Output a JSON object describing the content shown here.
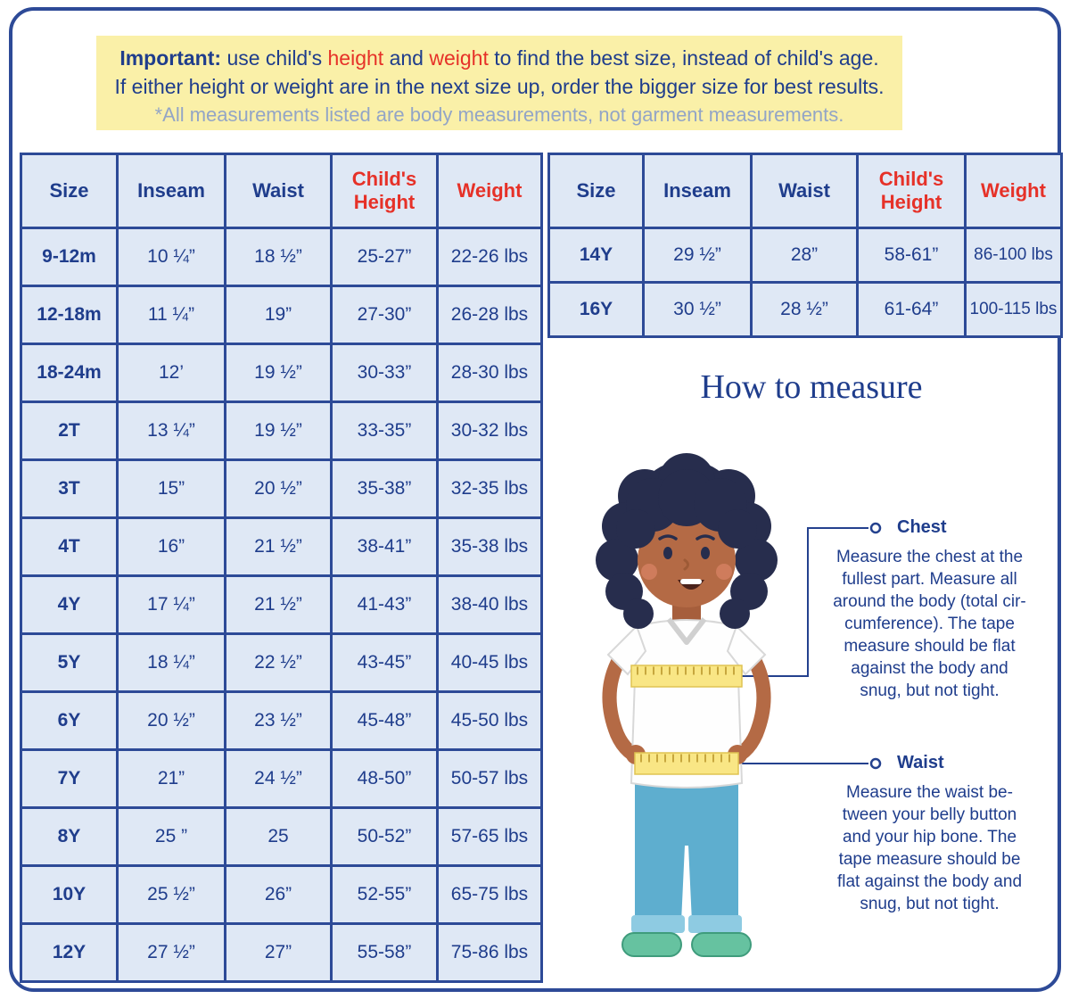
{
  "banner": {
    "important_label": "Important:",
    "line1_a": " use child's ",
    "word_height": "height",
    "line1_b": " and ",
    "word_weight": "weight",
    "line1_c": " to find the best size, instead of child's age.",
    "line2": "If either height or weight are in the next size up, order the bigger size for best results.",
    "line3": "*All measurements listed are body measurements, not garment measurements."
  },
  "main_table": {
    "headers": [
      "Size",
      "Inseam",
      "Waist",
      "Child's\nHeight",
      "Weight"
    ],
    "red_columns": [
      3,
      4
    ],
    "rows": [
      [
        "9-12m",
        "10 ¼”",
        "18 ½”",
        "25-27”",
        "22-26 lbs"
      ],
      [
        "12-18m",
        "11 ¼”",
        "19”",
        "27-30”",
        "26-28 lbs"
      ],
      [
        "18-24m",
        "12’",
        "19 ½”",
        "30-33”",
        "28-30 lbs"
      ],
      [
        "2T",
        "13 ¼”",
        "19 ½”",
        "33-35”",
        "30-32 lbs"
      ],
      [
        "3T",
        "15”",
        "20 ½”",
        "35-38”",
        "32-35 lbs"
      ],
      [
        "4T",
        "16”",
        "21 ½”",
        "38-41”",
        "35-38 lbs"
      ],
      [
        "4Y",
        "17 ¼”",
        "21 ½”",
        "41-43”",
        "38-40 lbs"
      ],
      [
        "5Y",
        "18 ¼”",
        "22 ½”",
        "43-45”",
        "40-45 lbs"
      ],
      [
        "6Y",
        "20 ½”",
        "23 ½”",
        "45-48”",
        "45-50 lbs"
      ],
      [
        "7Y",
        "21”",
        "24 ½”",
        "48-50”",
        "50-57 lbs"
      ],
      [
        "8Y",
        "25 ”",
        "25",
        "50-52”",
        "57-65 lbs"
      ],
      [
        "10Y",
        "25 ½”",
        "26”",
        "52-55”",
        "65-75 lbs"
      ],
      [
        "12Y",
        "27 ½”",
        "27”",
        "55-58”",
        "75-86 lbs"
      ]
    ]
  },
  "teen_table": {
    "headers": [
      "Size",
      "Inseam",
      "Waist",
      "Child's\nHeight",
      "Weight"
    ],
    "red_columns": [
      3,
      4
    ],
    "rows": [
      [
        "14Y",
        "29 ½”",
        "28”",
        "58-61”",
        "86-100 lbs"
      ],
      [
        "16Y",
        "30 ½”",
        "28 ½”",
        "61-64”",
        "100-115 lbs"
      ]
    ]
  },
  "how_to_measure": {
    "title": "How to measure",
    "chest": {
      "label": "Chest",
      "text": "Measure the chest at the\nfullest part. Measure all\naround the body (total cir-\ncumference). The tape\nmeasure should be flat\nagainst the body and\nsnug, but not tight."
    },
    "waist": {
      "label": "Waist",
      "text": "Measure the waist be-\ntween your belly button\nand your hip bone. The\ntape measure should be\nflat against the body and\nsnug, but not tight."
    }
  },
  "colors": {
    "dark_blue": "#1f3d8c",
    "red": "#e63128",
    "banner_yellow": "#faf0a8",
    "cell_blue": "#dfe8f5",
    "muted_blue": "#93a5c6",
    "skin": "#b46a45",
    "hair": "#272d4d",
    "pants_blue": "#5eaecf",
    "shoe_green": "#66c2a0",
    "tape_yellow": "#f9e685"
  }
}
